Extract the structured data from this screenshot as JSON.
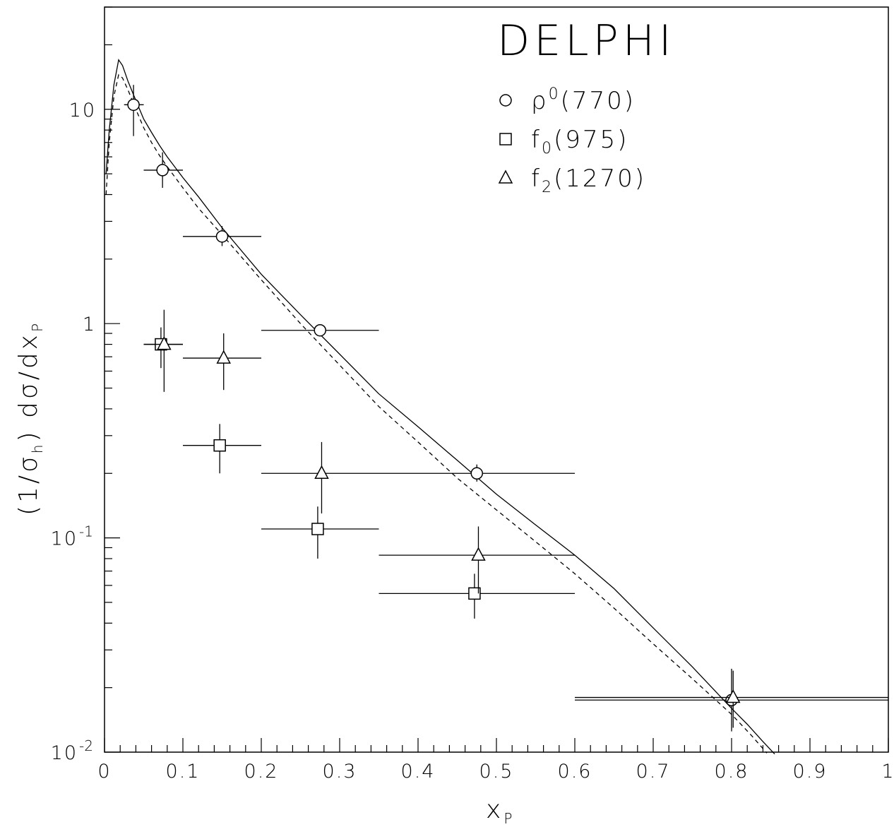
{
  "chart_data": {
    "type": "scatter",
    "title": "DELPHI",
    "xlabel": "x",
    "xlabel_sub": "P",
    "ylabel_parts": {
      "pre": "(1/σ",
      "sub1": "h",
      "mid": ") dσ/dx",
      "sub2": "P"
    },
    "xlim": [
      0,
      1
    ],
    "ylim": [
      0.01,
      30
    ],
    "yscale": "log",
    "grid": false,
    "legend_position": "top-right",
    "x_ticks": [
      "0",
      "0.1",
      "0.2",
      "0.3",
      "0.4",
      "0.5",
      "0.6",
      "0.7",
      "0.8",
      "0.9",
      "1"
    ],
    "y_ticks": [
      {
        "base": "10",
        "exp": "-2",
        "value": 0.01
      },
      {
        "base": "10",
        "exp": "-1",
        "value": 0.1
      },
      {
        "base": "1",
        "exp": "",
        "value": 1
      },
      {
        "base": "10",
        "exp": "",
        "value": 10
      }
    ],
    "series": [
      {
        "name": "ρ0(770)",
        "label": {
          "main": "ρ",
          "sup": "0",
          "rest": "(770)"
        },
        "marker": "circle",
        "points": [
          {
            "x": 0.037,
            "y": 10.5,
            "xerr": [
              0.025,
              0.05
            ],
            "yerr": [
              7.5,
              13.0
            ]
          },
          {
            "x": 0.074,
            "y": 5.2,
            "xerr": [
              0.05,
              0.1
            ],
            "yerr": [
              4.3,
              6.3
            ]
          },
          {
            "x": 0.15,
            "y": 2.55,
            "xerr": [
              0.1,
              0.2
            ],
            "yerr": [
              2.3,
              2.85
            ]
          },
          {
            "x": 0.275,
            "y": 0.93,
            "xerr": [
              0.2,
              0.35
            ],
            "yerr": [
              0.88,
              0.99
            ]
          },
          {
            "x": 0.475,
            "y": 0.2,
            "xerr": [
              0.35,
              0.6
            ],
            "yerr": [
              0.183,
              0.22
            ]
          },
          {
            "x": 0.8,
            "y": 0.0175,
            "xerr": [
              0.6,
              1.0
            ],
            "yerr": [
              0.0125,
              0.0245
            ]
          }
        ]
      },
      {
        "name": "f0(975)",
        "label": {
          "main": "f",
          "sub": "0",
          "rest": "(975)"
        },
        "marker": "square",
        "points": [
          {
            "x": 0.072,
            "y": 0.8,
            "xerr": [
              0.05,
              0.1
            ],
            "yerr": [
              0.62,
              0.96
            ]
          },
          {
            "x": 0.147,
            "y": 0.27,
            "xerr": [
              0.1,
              0.2
            ],
            "yerr": [
              0.2,
              0.34
            ]
          },
          {
            "x": 0.272,
            "y": 0.11,
            "xerr": [
              0.2,
              0.35
            ],
            "yerr": [
              0.08,
              0.14
            ]
          },
          {
            "x": 0.472,
            "y": 0.055,
            "xerr": [
              0.35,
              0.6
            ],
            "yerr": [
              0.042,
              0.068
            ]
          }
        ]
      },
      {
        "name": "f2(1270)",
        "label": {
          "main": "f",
          "sub": "2",
          "rest": "(1270)"
        },
        "marker": "triangle",
        "points": [
          {
            "x": 0.076,
            "y": 0.8,
            "xerr": [
              0.05,
              0.1
            ],
            "yerr": [
              0.48,
              1.16
            ]
          },
          {
            "x": 0.152,
            "y": 0.69,
            "xerr": [
              0.1,
              0.2
            ],
            "yerr": [
              0.49,
              0.9
            ]
          },
          {
            "x": 0.277,
            "y": 0.2,
            "xerr": [
              0.2,
              0.35
            ],
            "yerr": [
              0.13,
              0.28
            ]
          },
          {
            "x": 0.477,
            "y": 0.083,
            "xerr": [
              0.35,
              0.6
            ],
            "yerr": [
              0.055,
              0.113
            ]
          },
          {
            "x": 0.802,
            "y": 0.018,
            "xerr": [
              0.6,
              1.0
            ],
            "yerr": [
              0.013,
              0.024
            ]
          }
        ]
      }
    ],
    "curves": [
      {
        "style": "solid",
        "points": [
          [
            0.002,
            5.0
          ],
          [
            0.006,
            8.0
          ],
          [
            0.012,
            13.0
          ],
          [
            0.018,
            17.0
          ],
          [
            0.023,
            16.0
          ],
          [
            0.03,
            13.5
          ],
          [
            0.04,
            11.0
          ],
          [
            0.05,
            9.0
          ],
          [
            0.06,
            7.8
          ],
          [
            0.07,
            6.8
          ],
          [
            0.08,
            6.0
          ],
          [
            0.1,
            4.8
          ],
          [
            0.12,
            3.9
          ],
          [
            0.15,
            2.8
          ],
          [
            0.2,
            1.7
          ],
          [
            0.25,
            1.1
          ],
          [
            0.3,
            0.72
          ],
          [
            0.35,
            0.47
          ],
          [
            0.4,
            0.33
          ],
          [
            0.45,
            0.23
          ],
          [
            0.5,
            0.16
          ],
          [
            0.55,
            0.115
          ],
          [
            0.6,
            0.083
          ],
          [
            0.62,
            0.072
          ],
          [
            0.65,
            0.058
          ],
          [
            0.7,
            0.038
          ],
          [
            0.75,
            0.025
          ],
          [
            0.8,
            0.016
          ],
          [
            0.82,
            0.0135
          ],
          [
            0.84,
            0.0112
          ],
          [
            0.855,
            0.0098
          ]
        ]
      },
      {
        "style": "dashed",
        "points": [
          [
            0.002,
            4.0
          ],
          [
            0.006,
            7.0
          ],
          [
            0.012,
            11.5
          ],
          [
            0.018,
            14.5
          ],
          [
            0.023,
            14.0
          ],
          [
            0.03,
            12.3
          ],
          [
            0.04,
            10.0
          ],
          [
            0.05,
            8.2
          ],
          [
            0.06,
            7.0
          ],
          [
            0.07,
            6.1
          ],
          [
            0.08,
            5.4
          ],
          [
            0.1,
            4.3
          ],
          [
            0.12,
            3.45
          ],
          [
            0.15,
            2.6
          ],
          [
            0.2,
            1.6
          ],
          [
            0.25,
            1.0
          ],
          [
            0.3,
            0.64
          ],
          [
            0.35,
            0.41
          ],
          [
            0.4,
            0.28
          ],
          [
            0.45,
            0.19
          ],
          [
            0.5,
            0.135
          ],
          [
            0.55,
            0.096
          ],
          [
            0.6,
            0.068
          ],
          [
            0.65,
            0.047
          ],
          [
            0.7,
            0.032
          ],
          [
            0.75,
            0.022
          ],
          [
            0.8,
            0.015
          ],
          [
            0.825,
            0.012
          ],
          [
            0.845,
            0.0099
          ]
        ]
      }
    ]
  }
}
